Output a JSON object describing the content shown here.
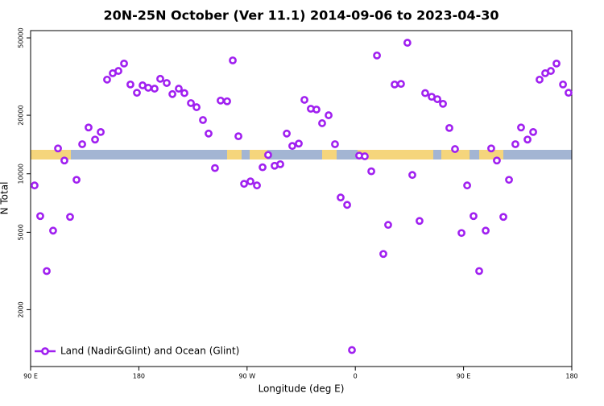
{
  "chart_data": {
    "type": "scatter",
    "title": "20N-25N October (Ver 11.1)   2014-09-06 to 2023-04-30",
    "x_label": "Longitude (deg E)",
    "y_label": "N Total",
    "yscale": "log",
    "legend": "lower left",
    "xlim": [
      90,
      540
    ],
    "xticks": [
      {
        "value": 90,
        "label": "90 E"
      },
      {
        "value": 180,
        "label": "180"
      },
      {
        "value": 270,
        "label": "90 W"
      },
      {
        "value": 360,
        "label": "0"
      },
      {
        "value": 450,
        "label": "90 E"
      },
      {
        "value": 540,
        "label": "180"
      }
    ],
    "ylim": [
      1020,
      54500
    ],
    "yticks": [
      2000,
      5000,
      10000,
      20000,
      50000
    ],
    "series": [
      {
        "name": "Land (Nadir&Glint) and Ocean (Glint)",
        "color": "#a020f0",
        "x": [
          93.3,
          98,
          103.4,
          108.7,
          112.8,
          118.1,
          122.8,
          128.2,
          132.9,
          138.2,
          143.6,
          148.3,
          153.6,
          158.3,
          163,
          167.7,
          173,
          178.4,
          183.1,
          187.8,
          193.1,
          197.8,
          203.2,
          207.9,
          213.2,
          217.9,
          223.3,
          228,
          233.3,
          238,
          243.3,
          248,
          253.4,
          258.1,
          262.8,
          267.5,
          272.8,
          278.2,
          282.9,
          287.5,
          292.9,
          297.6,
          303,
          307.6,
          313,
          317.7,
          323,
          327.7,
          332.4,
          337.8,
          343.1,
          347.8,
          353.2,
          357.2,
          363.2,
          367.9,
          373.3,
          378,
          383.3,
          387.3,
          392.7,
          398,
          403.3,
          407.4,
          413.4,
          418.1,
          423.5,
          428.2,
          432.9,
          438.2,
          442.9,
          448.3,
          453,
          458.3,
          463,
          468.4,
          473,
          477.7,
          483.1,
          487.8,
          493.1,
          497.8,
          503.2,
          507.9,
          513.2,
          517.9,
          522.6,
          527.3,
          532.7,
          537.3
        ],
        "values": [
          8710,
          6060,
          3160,
          5100,
          13500,
          11700,
          6000,
          9310,
          14200,
          17300,
          15000,
          16400,
          30500,
          32900,
          33800,
          36900,
          28800,
          26100,
          28500,
          27700,
          27400,
          30800,
          29300,
          25700,
          27400,
          26000,
          23100,
          22000,
          18900,
          16100,
          10700,
          23800,
          23600,
          38300,
          15600,
          8880,
          9140,
          8710,
          10800,
          12500,
          11000,
          11200,
          16100,
          13900,
          14300,
          24000,
          21600,
          21400,
          18200,
          20000,
          14200,
          7550,
          6920,
          1240,
          12400,
          12300,
          10300,
          40600,
          3870,
          5460,
          28800,
          29000,
          47200,
          9860,
          5720,
          26000,
          24900,
          24200,
          22900,
          17200,
          13400,
          4960,
          8710,
          6060,
          3160,
          5100,
          13500,
          11700,
          6000,
          9310,
          14200,
          17300,
          15000,
          16400,
          30500,
          32900,
          33800,
          36900,
          28800,
          26100
        ]
      }
    ]
  }
}
